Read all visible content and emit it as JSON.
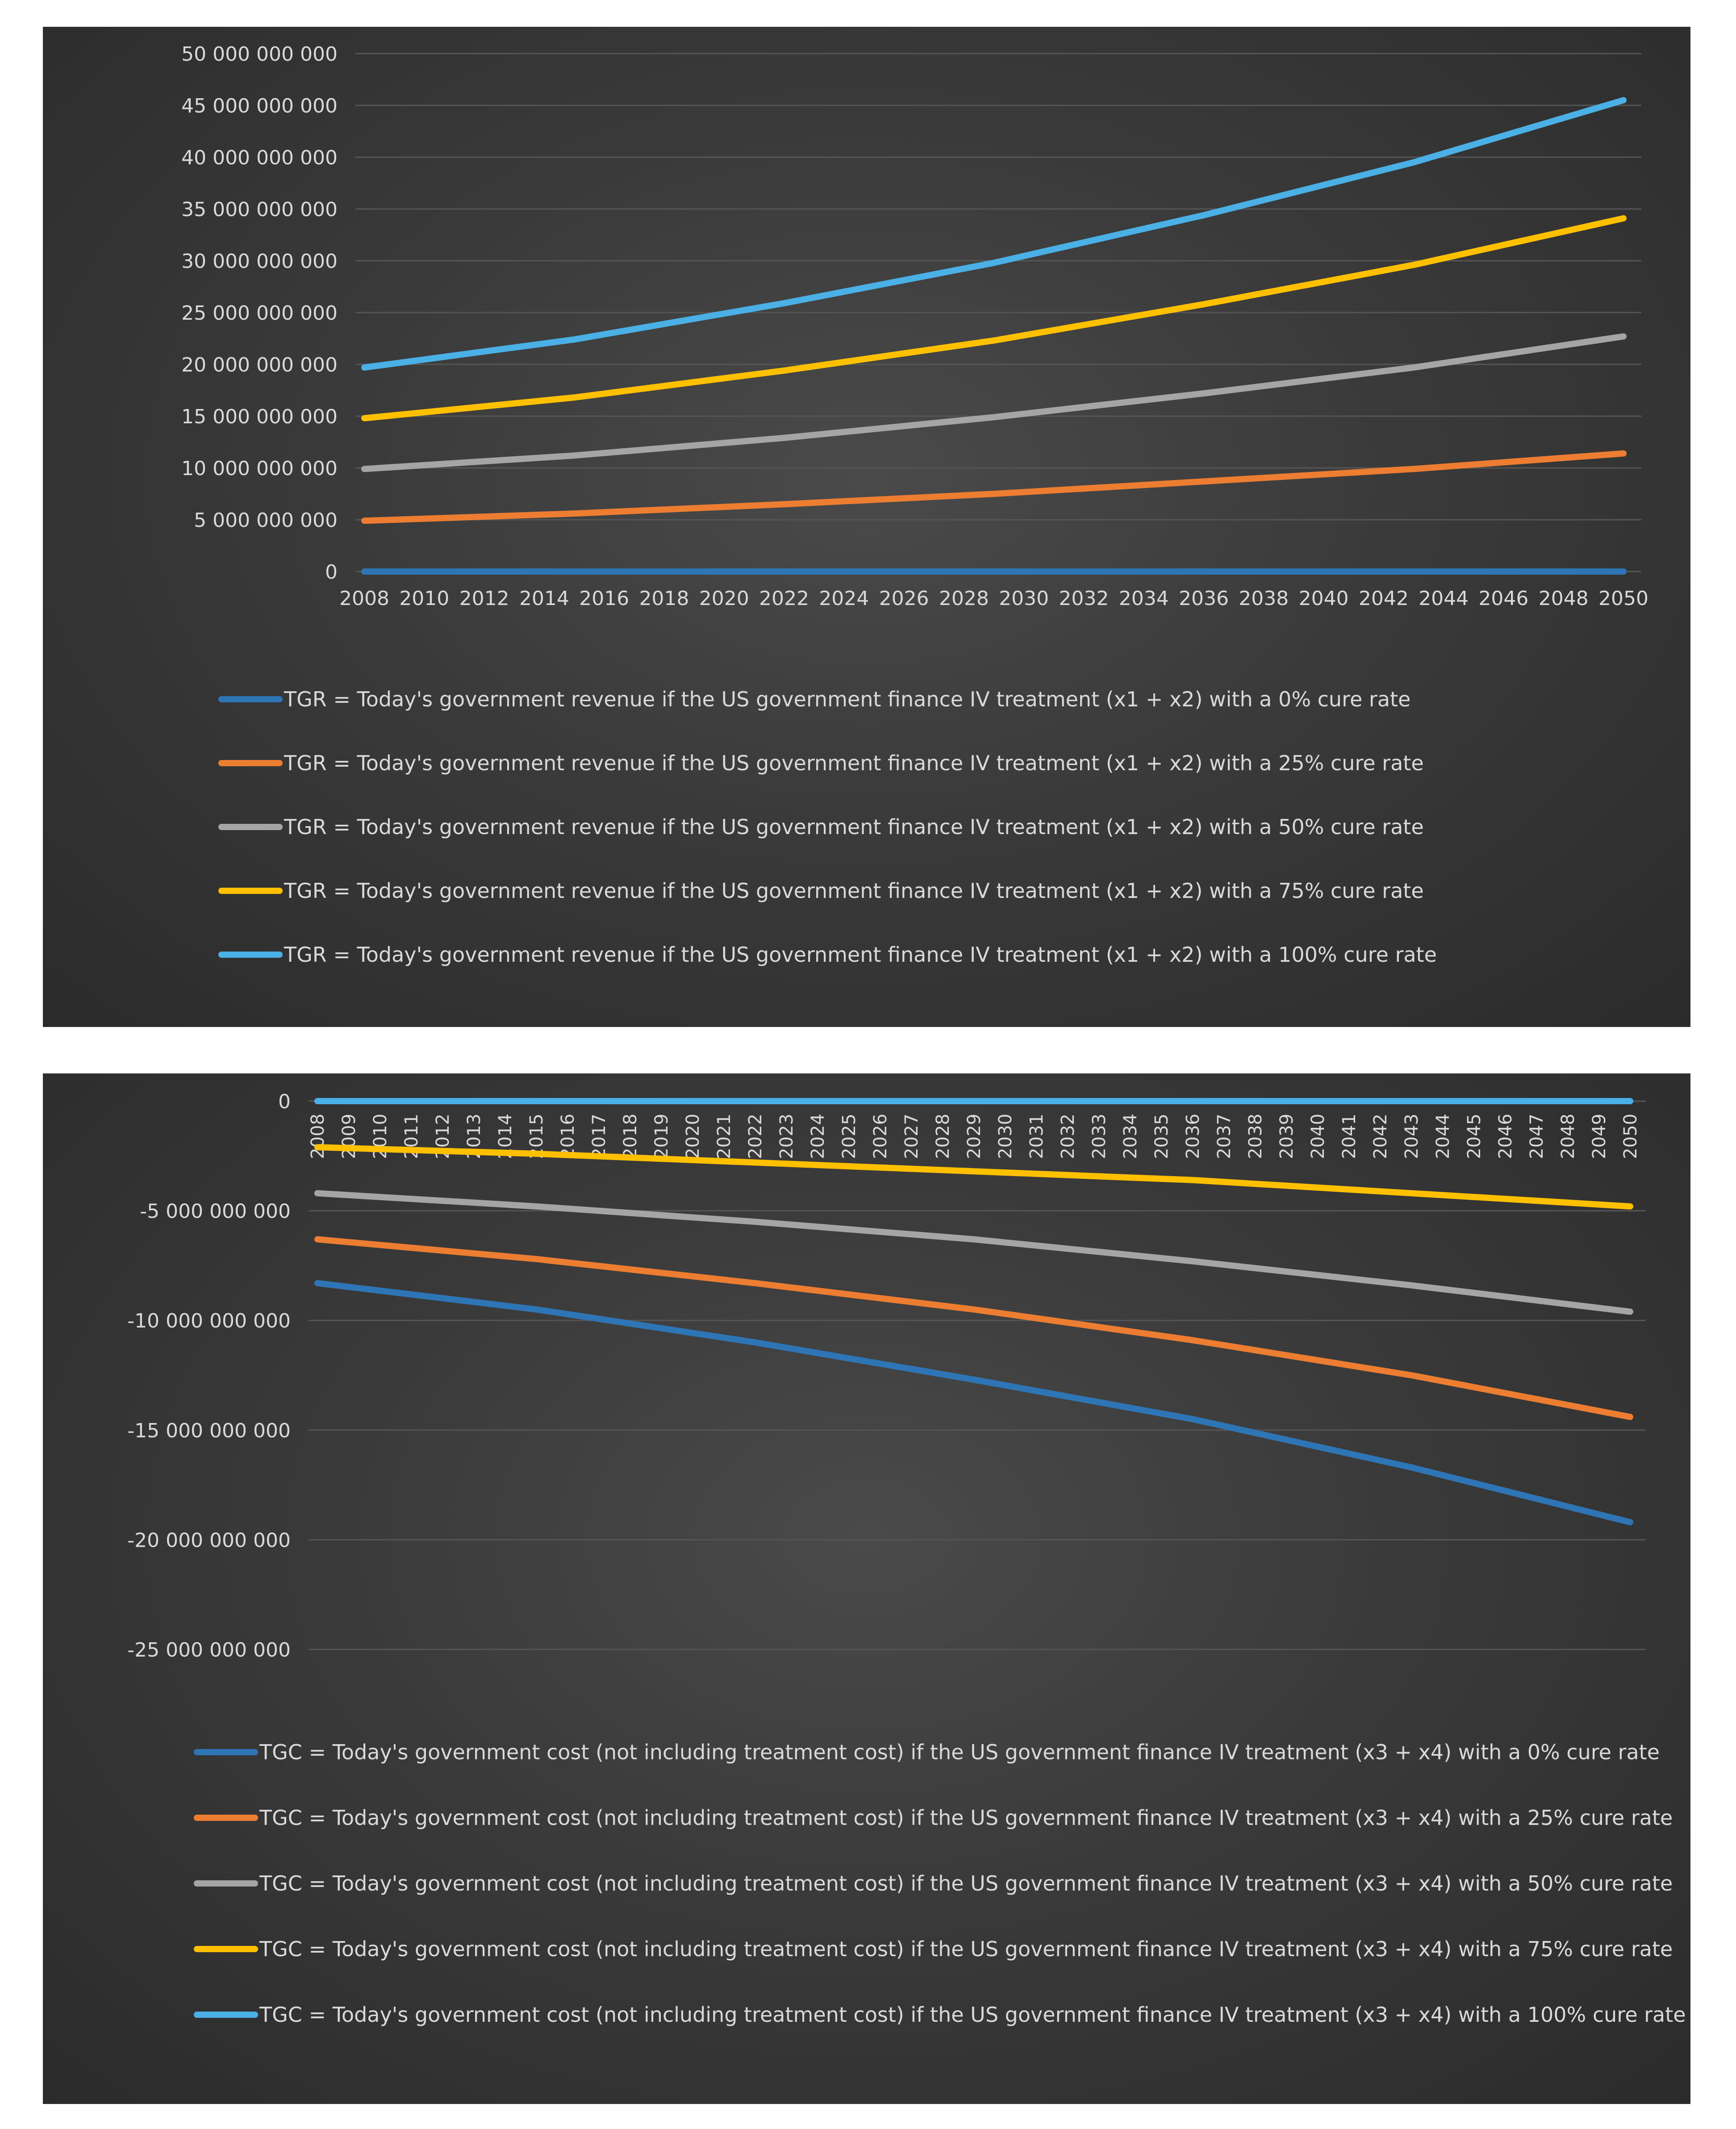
{
  "chart_data": [
    {
      "type": "line",
      "title": "",
      "xlabel": "",
      "ylabel": "",
      "x_tick_labels": [
        "2008",
        "2010",
        "2012",
        "2014",
        "2016",
        "2018",
        "2020",
        "2022",
        "2024",
        "2026",
        "2028",
        "2030",
        "2032",
        "2034",
        "2036",
        "2038",
        "2040",
        "2042",
        "2044",
        "2046",
        "2048",
        "2050"
      ],
      "y_tick_labels": [
        "50 000 000 000",
        "45 000 000 000",
        "40 000 000 000",
        "35 000 000 000",
        "30 000 000 000",
        "25 000 000 000",
        "20 000 000 000",
        "15 000 000 000",
        "10 000 000 000",
        "5 000 000 000",
        "0"
      ],
      "ylim": [
        0,
        50000000000
      ],
      "xlim": [
        2008,
        2050
      ],
      "grid": true,
      "legend_position": "bottom",
      "x": [
        2008,
        2015,
        2022,
        2029,
        2036,
        2043,
        2050
      ],
      "series": [
        {
          "name": "TGR = Today's government revenue if the US government finance IV treatment (x1 + x2) with a 0% cure rate",
          "color": "#2e75b6",
          "values": [
            0,
            0,
            0,
            0,
            0,
            0,
            0
          ]
        },
        {
          "name": "TGR = Today's government revenue if the US government finance IV treatment (x1 + x2) with a 25% cure rate",
          "color": "#ed7d31",
          "values": [
            4900000000,
            5600000000,
            6500000000,
            7500000000,
            8700000000,
            9900000000,
            11400000000
          ]
        },
        {
          "name": "TGR = Today's government revenue if the US government finance IV treatment (x1 + x2) with a 50% cure rate",
          "color": "#a5a5a5",
          "values": [
            9900000000,
            11200000000,
            12900000000,
            14900000000,
            17200000000,
            19700000000,
            22700000000
          ]
        },
        {
          "name": "TGR = Today's government revenue if the US government finance IV treatment (x1 + x2) with a 75% cure rate",
          "color": "#ffc000",
          "values": [
            14800000000,
            16800000000,
            19400000000,
            22300000000,
            25800000000,
            29600000000,
            34100000000
          ]
        },
        {
          "name": "TGR = Today's government revenue if the US government finance IV treatment (x1 + x2) with a 100% cure rate",
          "color": "#4ab0e6",
          "values": [
            19700000000,
            22400000000,
            25900000000,
            29800000000,
            34400000000,
            39500000000,
            45500000000
          ]
        }
      ]
    },
    {
      "type": "line",
      "title": "",
      "xlabel": "",
      "ylabel": "",
      "x_tick_labels": [
        "2008",
        "2009",
        "2010",
        "2011",
        "2012",
        "2013",
        "2014",
        "2015",
        "2016",
        "2017",
        "2018",
        "2019",
        "2020",
        "2021",
        "2022",
        "2023",
        "2024",
        "2025",
        "2026",
        "2027",
        "2028",
        "2029",
        "2030",
        "2031",
        "2032",
        "2033",
        "2034",
        "2035",
        "2036",
        "2037",
        "2038",
        "2039",
        "2040",
        "2041",
        "2042",
        "2043",
        "2044",
        "2045",
        "2046",
        "2047",
        "2048",
        "2049",
        "2050"
      ],
      "y_tick_labels": [
        "0",
        "-5 000 000 000",
        "-10 000 000 000",
        "-15 000 000 000",
        "-20 000 000 000",
        "-25 000 000 000"
      ],
      "ylim": [
        -25000000000,
        0
      ],
      "xlim": [
        2008,
        2050
      ],
      "grid": true,
      "legend_position": "bottom",
      "x": [
        2008,
        2015,
        2022,
        2029,
        2036,
        2043,
        2050
      ],
      "series": [
        {
          "name": "TGC = Today's government cost (not including treatment cost) if the US government finance IV treatment (x3 + x4) with a 0% cure rate",
          "color": "#2e75b6",
          "values": [
            -8300000000,
            -9500000000,
            -11000000000,
            -12700000000,
            -14500000000,
            -16700000000,
            -19200000000
          ]
        },
        {
          "name": "TGC = Today's government cost (not including treatment cost) if the US government finance IV treatment (x3 + x4) with a 25% cure rate",
          "color": "#ed7d31",
          "values": [
            -6300000000,
            -7200000000,
            -8300000000,
            -9500000000,
            -10900000000,
            -12500000000,
            -14400000000
          ]
        },
        {
          "name": "TGC = Today's government cost (not including treatment cost) if the US government finance IV treatment (x3 + x4) with a 50% cure rate",
          "color": "#a5a5a5",
          "values": [
            -4200000000,
            -4800000000,
            -5500000000,
            -6300000000,
            -7300000000,
            -8400000000,
            -9600000000
          ]
        },
        {
          "name": "TGC = Today's government cost (not including treatment cost) if the US government finance IV treatment (x3 + x4) with a 75% cure rate",
          "color": "#ffc000",
          "values": [
            -2100000000,
            -2400000000,
            -2800000000,
            -3200000000,
            -3600000000,
            -4200000000,
            -4800000000
          ]
        },
        {
          "name": "TGC = Today's government cost (not including treatment cost) if the US government finance IV treatment (x3 + x4) with a 100% cure rate",
          "color": "#4ab0e6",
          "values": [
            0,
            0,
            0,
            0,
            0,
            0,
            0
          ]
        }
      ]
    }
  ]
}
